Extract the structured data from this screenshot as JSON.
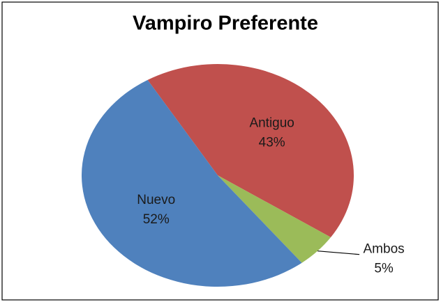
{
  "chart_data": {
    "type": "pie",
    "title": "Vampiro Preferente",
    "categories": [
      "Antiguo",
      "Ambos",
      "Nuevo"
    ],
    "values": [
      43,
      5,
      52
    ],
    "value_labels": [
      "43%",
      "5%",
      "52%"
    ],
    "colors": [
      "#c0504d",
      "#9bbb59",
      "#4f81bd"
    ]
  }
}
